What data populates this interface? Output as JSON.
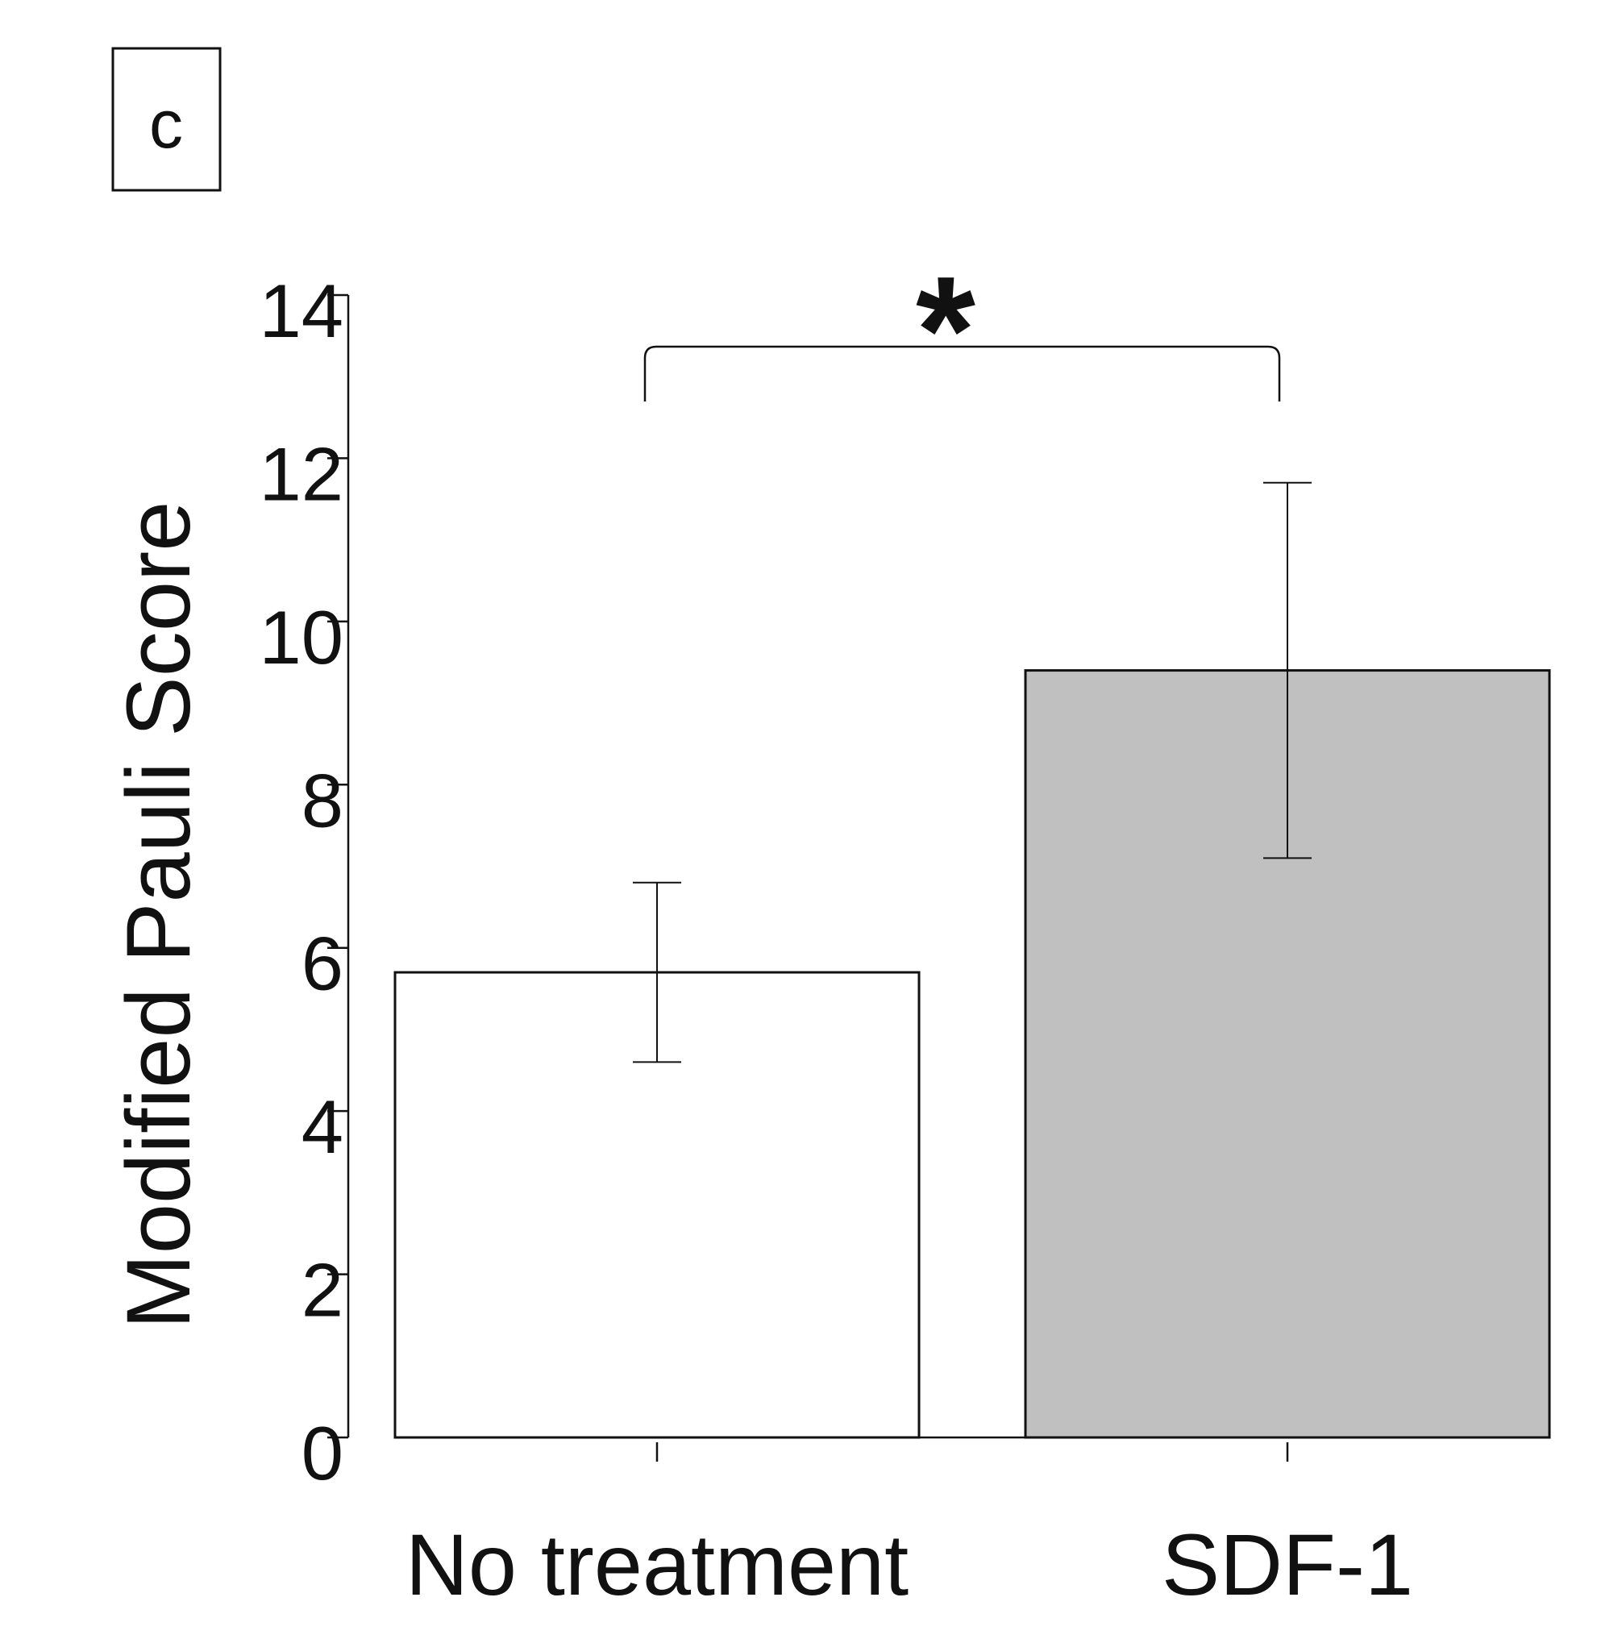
{
  "chart_data": {
    "type": "bar",
    "panel_label": "c",
    "title": "",
    "xlabel": "",
    "ylabel": "Modified Pauli Score",
    "ylim": [
      0,
      14
    ],
    "yticks": [
      0,
      2,
      4,
      6,
      8,
      10,
      12,
      14
    ],
    "grid": false,
    "categories": [
      "No treatment",
      "SDF-1"
    ],
    "values": [
      5.7,
      9.4
    ],
    "error_low": [
      4.6,
      7.1
    ],
    "error_high": [
      6.8,
      11.7
    ],
    "bar_colors": [
      "#ffffff",
      "#c0c0c0"
    ],
    "significance": {
      "between": [
        "No treatment",
        "SDF-1"
      ],
      "label": "*"
    }
  }
}
